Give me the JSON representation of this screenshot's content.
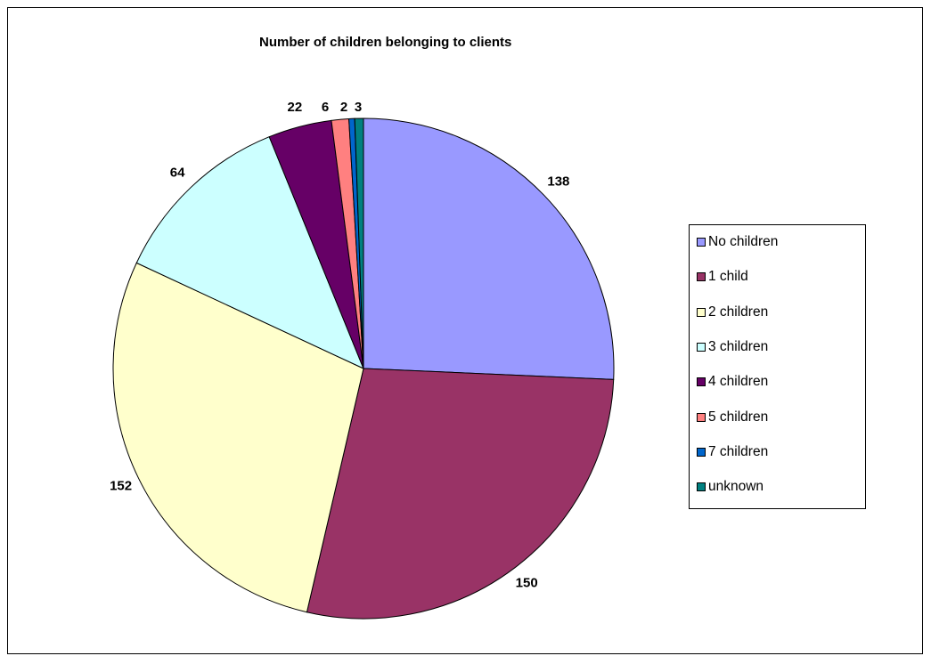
{
  "chart_data": {
    "type": "pie",
    "title": "Number of children belonging to clients",
    "legend_position": "right",
    "slices": [
      {
        "label": "No children",
        "value": 138,
        "color": "#9999ff",
        "data_label": "138"
      },
      {
        "label": "1 child",
        "value": 150,
        "color": "#993366",
        "data_label": "150"
      },
      {
        "label": "2 children",
        "value": 152,
        "color": "#ffffcc",
        "data_label": "152"
      },
      {
        "label": "3 children",
        "value": 64,
        "color": "#ccffff",
        "data_label": "64"
      },
      {
        "label": "4 children",
        "value": 22,
        "color": "#660066",
        "data_label": "22"
      },
      {
        "label": "5 children",
        "value": 6,
        "color": "#ff8080",
        "data_label": "6"
      },
      {
        "label": "7 children",
        "value": 2,
        "color": "#0066cc",
        "data_label": "2"
      },
      {
        "label": "unknown",
        "value": 3,
        "color": "#008080",
        "data_label": "3"
      }
    ]
  }
}
